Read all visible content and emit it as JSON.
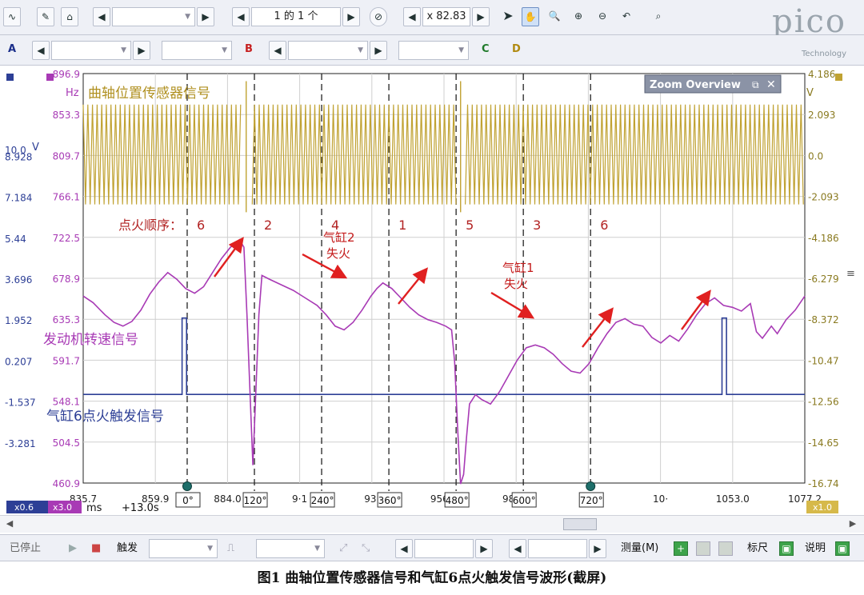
{
  "toolbar": {
    "page_counter": "1 的 1 个",
    "zoom_value": "x 82.83"
  },
  "channels": {
    "a_label": "A",
    "b_label": "B",
    "c_label": "C",
    "d_label": "D"
  },
  "logo": {
    "name": "pico",
    "sub": "Technology"
  },
  "zoom_overview": {
    "title": "Zoom Overview"
  },
  "chart_data": {
    "type": "line",
    "left_axis_v": {
      "unit": "V",
      "ticks": [
        "10.0",
        "8.928",
        "7.184",
        "5.44",
        "3.696",
        "1.952",
        "0.207",
        "-1.537",
        "-3.281"
      ]
    },
    "left_axis_hz": {
      "unit": "Hz",
      "ticks": [
        "896.9",
        "853.3",
        "809.7",
        "766.1",
        "722.5",
        "678.9",
        "635.3",
        "591.7",
        "548.1",
        "504.5",
        "460.9"
      ]
    },
    "right_axis": {
      "unit": "V",
      "ticks": [
        "4.186",
        "2.093",
        "0.0",
        "-2.093",
        "-4.186",
        "-6.279",
        "-8.372",
        "-10.47",
        "-12.56",
        "-14.65",
        "-16.74"
      ]
    },
    "x_axis": {
      "unit": "ms",
      "ticks": [
        "835.7",
        "859.9",
        "884.0",
        "9·1",
        "93·",
        "956.4",
        "980.6",
        "·4.7",
        "10·",
        "1053.0",
        "1077.2"
      ],
      "offset": "+13.0s"
    },
    "x_range": [
      835.7,
      1077.2
    ],
    "markers": [
      {
        "label": "0°",
        "time": 870.5
      },
      {
        "label": "120°",
        "time": 893.0
      },
      {
        "label": "240°",
        "time": 915.5
      },
      {
        "label": "360°",
        "time": 938.0
      },
      {
        "label": "480°",
        "time": 960.5
      },
      {
        "label": "600°",
        "time": 983.0
      },
      {
        "label": "720°",
        "time": 1005.5
      }
    ],
    "firing_order_label": "点火顺序：",
    "firing_order": [
      "6",
      "2",
      "4",
      "1",
      "5",
      "3",
      "6"
    ],
    "series": [
      {
        "name": "曲轴位置传感器信号",
        "color": "#c0a232"
      },
      {
        "name": "发动机转速信号",
        "color": "#a83ab5"
      },
      {
        "name": "气缸6点火触发信号",
        "color": "#2d3f96"
      }
    ],
    "rpm_trace": [
      [
        835.7,
        660
      ],
      [
        839,
        653
      ],
      [
        843,
        640
      ],
      [
        846,
        632
      ],
      [
        849,
        628
      ],
      [
        852,
        633
      ],
      [
        855,
        645
      ],
      [
        858,
        662
      ],
      [
        861,
        675
      ],
      [
        864,
        685
      ],
      [
        867,
        678
      ],
      [
        870,
        668
      ],
      [
        873,
        663
      ],
      [
        876,
        670
      ],
      [
        879,
        685
      ],
      [
        882,
        700
      ],
      [
        885,
        712
      ],
      [
        888,
        720
      ],
      [
        889.5,
        712
      ],
      [
        890.5,
        640
      ],
      [
        891.5,
        560
      ],
      [
        892.5,
        480
      ],
      [
        893.5,
        560
      ],
      [
        894.5,
        640
      ],
      [
        895.5,
        682
      ],
      [
        898,
        678
      ],
      [
        902,
        672
      ],
      [
        906,
        666
      ],
      [
        910,
        658
      ],
      [
        914,
        650
      ],
      [
        917,
        640
      ],
      [
        920,
        628
      ],
      [
        923,
        624
      ],
      [
        926,
        632
      ],
      [
        929,
        645
      ],
      [
        932,
        660
      ],
      [
        934,
        668
      ],
      [
        936,
        674
      ],
      [
        939,
        668
      ],
      [
        942,
        658
      ],
      [
        945,
        648
      ],
      [
        948,
        640
      ],
      [
        951,
        635
      ],
      [
        954,
        632
      ],
      [
        957,
        628
      ],
      [
        959,
        624
      ],
      [
        960,
        590
      ],
      [
        961,
        520
      ],
      [
        962,
        460
      ],
      [
        963,
        470
      ],
      [
        964,
        510
      ],
      [
        965,
        545
      ],
      [
        967,
        555
      ],
      [
        969,
        550
      ],
      [
        972,
        545
      ],
      [
        975,
        558
      ],
      [
        978,
        575
      ],
      [
        981,
        592
      ],
      [
        984,
        605
      ],
      [
        987,
        608
      ],
      [
        990,
        605
      ],
      [
        993,
        598
      ],
      [
        996,
        588
      ],
      [
        999,
        580
      ],
      [
        1002,
        578
      ],
      [
        1005,
        588
      ],
      [
        1008,
        605
      ],
      [
        1011,
        620
      ],
      [
        1014,
        632
      ],
      [
        1017,
        636
      ],
      [
        1020,
        630
      ],
      [
        1023,
        628
      ],
      [
        1026,
        616
      ],
      [
        1029,
        610
      ],
      [
        1032,
        618
      ],
      [
        1035,
        612
      ],
      [
        1038,
        625
      ],
      [
        1041,
        640
      ],
      [
        1044,
        652
      ],
      [
        1047,
        658
      ],
      [
        1050,
        650
      ],
      [
        1053,
        648
      ],
      [
        1056,
        644
      ],
      [
        1059,
        652
      ],
      [
        1061,
        622
      ],
      [
        1063,
        615
      ],
      [
        1066,
        628
      ],
      [
        1068,
        620
      ],
      [
        1071,
        635
      ],
      [
        1074,
        645
      ],
      [
        1077.2,
        660
      ]
    ],
    "trigger_trace": [
      [
        835.7,
        0.2
      ],
      [
        868.8,
        0.2
      ],
      [
        868.8,
        3.2
      ],
      [
        870.3,
        3.2
      ],
      [
        870.3,
        0.2
      ],
      [
        1049.5,
        0.2
      ],
      [
        1049.5,
        3.2
      ],
      [
        1051,
        3.2
      ],
      [
        1051,
        0.2
      ],
      [
        1077.2,
        0.2
      ]
    ],
    "crank_breaks": [
      [
        888.5,
        892.0
      ],
      [
        960.5,
        963.5
      ]
    ],
    "crank_range_v": [
      -2.5,
      2.6
    ]
  },
  "annotations": {
    "cyl2_misfire": "气缸2\n失火",
    "cyl1_misfire": "气缸1\n失火"
  },
  "probes": {
    "a": "x0.6",
    "b": "x3.0",
    "right": "x1.0"
  },
  "statusbar": {
    "stopped": "已停止",
    "trigger": "触发",
    "measure": "测量(M)",
    "ruler": "标尺",
    "notes": "说明"
  },
  "caption": "图1    曲轴位置传感器信号和气缸6点火触发信号波形(截屏)"
}
